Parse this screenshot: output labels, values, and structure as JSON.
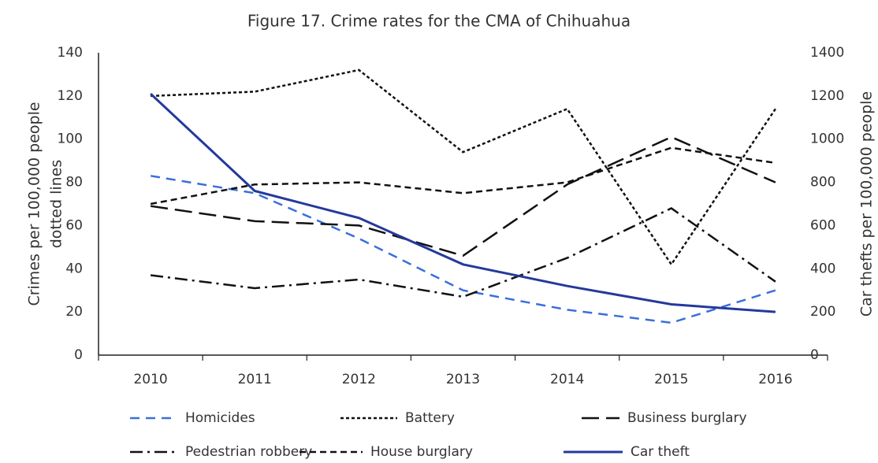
{
  "chart_data": {
    "type": "line",
    "title": "Figure 17. Crime rates for the CMA of Chihuahua",
    "ylabel": [
      "Crimes per 100,000 people",
      "dotted lines"
    ],
    "y2label": "Car thefts per 100,000 people",
    "categories": [
      "2010",
      "2011",
      "2012",
      "2013",
      "2014",
      "2015",
      "2016"
    ],
    "series": [
      {
        "name": "Homicides",
        "color": "#3a6fdc",
        "dash": "dashed",
        "values": [
          83,
          75,
          54,
          30,
          21,
          15,
          30
        ]
      },
      {
        "name": "Battery",
        "color": "#111111",
        "dash": "dotted",
        "values": [
          120,
          122,
          132,
          94,
          114,
          42,
          114
        ]
      },
      {
        "name": "Business burglary",
        "color": "#111111",
        "dash": "longdash",
        "values": [
          69,
          62,
          60,
          46,
          79,
          101,
          80
        ]
      },
      {
        "name": "Pedestrian robbery",
        "color": "#111111",
        "dash": "dashdot",
        "values": [
          37,
          31,
          35,
          27,
          45,
          68,
          34
        ]
      },
      {
        "name": "House burglary",
        "color": "#111111",
        "dash": "mediumdash",
        "values": [
          70,
          79,
          80,
          75,
          80,
          96,
          89
        ]
      },
      {
        "name": "Car theft",
        "color": "#24399c",
        "dash": "solid",
        "axis": "y2",
        "values": [
          1210,
          760,
          635,
          420,
          320,
          235,
          200
        ]
      }
    ],
    "ylim": [
      0,
      140
    ],
    "yticks": [
      0,
      20,
      40,
      60,
      80,
      100,
      120,
      140
    ],
    "y2lim": [
      0,
      1400
    ],
    "y2ticks": [
      0,
      200,
      400,
      600,
      800,
      1000,
      1200,
      1400
    ],
    "grid": false,
    "legend": "bottom"
  }
}
